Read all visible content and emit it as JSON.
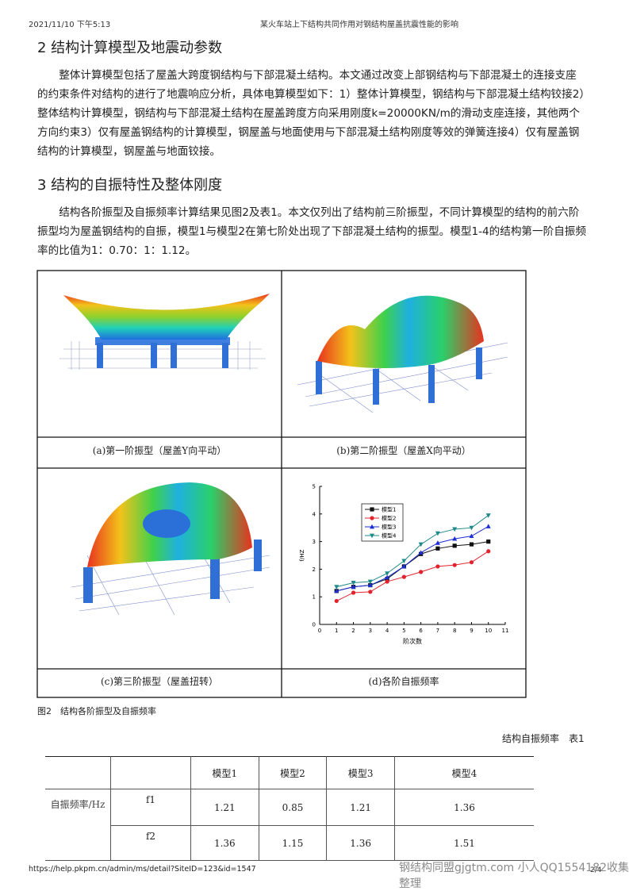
{
  "header": {
    "datetime": "2021/11/10 下午5:13",
    "doc_title": "某火车站上下结构共同作用对钢结构屋盖抗震性能的影响"
  },
  "sections": [
    {
      "heading": "2 结构计算模型及地震动参数",
      "paragraph": "整体计算模型包括了屋盖大跨度钢结构与下部混凝土结构。本文通过改变上部钢结构与下部混凝土的连接支座的约束条件对结构的进行了地震响应分析，具体电算模型如下：1）整体计算模型，钢结构与下部混凝土结构铰接2）整体结构计算模型，钢结构与下部混凝土结构在屋盖跨度方向采用刚度k=20000KN/m的滑动支座连接，其他两个方向约束3）仅有屋盖钢结构的计算模型，钢屋盖与地面使用与下部混凝土结构刚度等效的弹簧连接4）仅有屋盖钢结构的计算模型，钢屋盖与地面铰接。"
    },
    {
      "heading": "3 结构的自振特性及整体刚度",
      "paragraph": "结构各阶振型及自振频率计算结果见图2及表1。本文仅列出了结构前三阶振型，不同计算模型的结构的前六阶振型均为屋盖钢结构的自振，模型1与模型2在第七阶处出现了下部混凝土结构的振型。模型1-4的结构第一阶自振频率的比值为1：0.70：1：1.12。"
    }
  ],
  "figure": {
    "caption": "图2　结构各阶振型及自振频率",
    "panels": [
      {
        "caption": "(a)第一阶振型（屋盖Y向平动）"
      },
      {
        "caption": "(b)第二阶振型（屋盖X向平动）"
      },
      {
        "caption": "(c)第三阶振型（屋盖扭转）"
      },
      {
        "caption": "(d)各阶自振频率",
        "chart": {
          "type": "line",
          "x_label": "阶次数",
          "y_label": "f/HZ",
          "x": [
            1,
            2,
            3,
            4,
            5,
            6,
            7,
            8,
            9,
            10
          ],
          "xlim": [
            0,
            11
          ],
          "xticks": [
            0,
            1,
            2,
            3,
            4,
            5,
            6,
            7,
            8,
            9,
            10,
            11
          ],
          "ylim": [
            0,
            5
          ],
          "yticks": [
            0,
            1,
            2,
            3,
            4,
            5
          ],
          "series": [
            {
              "name": "模型1",
              "color": "#111111",
              "marker": "square",
              "values": [
                1.21,
                1.36,
                1.42,
                1.65,
                2.1,
                2.55,
                2.75,
                2.85,
                2.9,
                3.0
              ]
            },
            {
              "name": "模型2",
              "color": "#e3232b",
              "marker": "circle",
              "values": [
                0.85,
                1.15,
                1.18,
                1.55,
                1.72,
                1.9,
                2.1,
                2.15,
                2.25,
                2.65
              ]
            },
            {
              "name": "模型3",
              "color": "#1b2fd3",
              "marker": "triangle",
              "values": [
                1.21,
                1.36,
                1.42,
                1.7,
                2.1,
                2.6,
                2.95,
                3.1,
                3.2,
                3.55
              ]
            },
            {
              "name": "模型4",
              "color": "#1f8a8a",
              "marker": "triangle-down",
              "values": [
                1.36,
                1.51,
                1.55,
                1.85,
                2.3,
                2.9,
                3.3,
                3.45,
                3.5,
                3.95
              ]
            }
          ]
        }
      }
    ]
  },
  "table": {
    "caption": "结构自振频率　表1",
    "header": [
      "模型1",
      "模型2",
      "模型3",
      "模型4"
    ],
    "row_group": "自振频率/Hz",
    "rows": [
      {
        "label": "f1",
        "values": [
          1.21,
          0.85,
          1.21,
          1.36
        ]
      },
      {
        "label": "f2",
        "values": [
          1.36,
          1.15,
          1.36,
          1.51
        ]
      }
    ]
  },
  "footer": {
    "url": "https://help.pkpm.cn/admin/ms/detail?SiteID=123&id=1547",
    "page": "2/4",
    "watermark": "钢结构同盟gjgtm.com 小人QQ1554182收集整理"
  }
}
